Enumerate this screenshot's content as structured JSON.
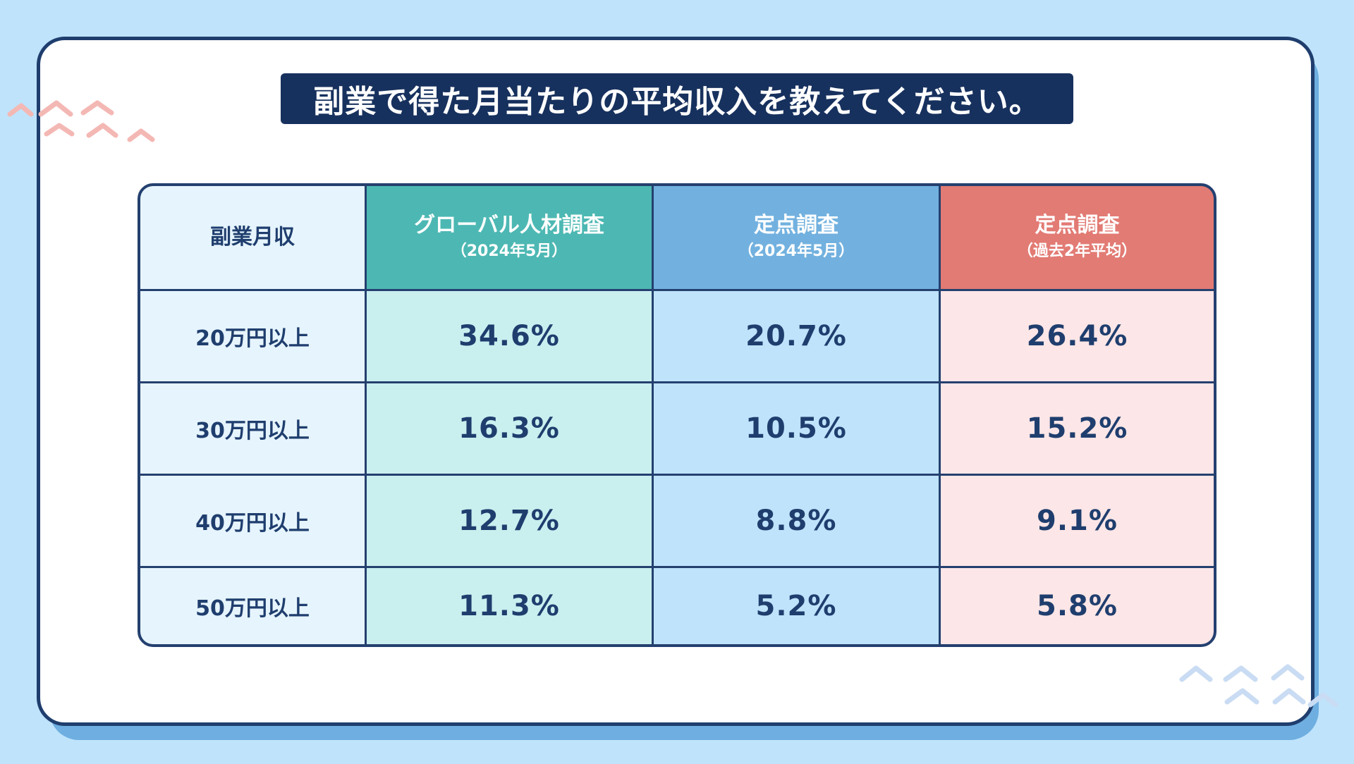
{
  "title": "副業で得た月当たりの平均収入を教えてください。",
  "table": {
    "corner_label": "副業月収",
    "columns": [
      {
        "main": "グローバル人材調査",
        "sub": "（2024年5月）",
        "color": "#4db8b3"
      },
      {
        "main": "定点調査",
        "sub": "（2024年5月）",
        "color": "#72b1df"
      },
      {
        "main": "定点調査",
        "sub": "（過去2年平均）",
        "color": "#e27b74"
      }
    ],
    "rows": [
      {
        "label": "20万円以上",
        "values": [
          "34.6%",
          "20.7%",
          "26.4%"
        ]
      },
      {
        "label": "30万円以上",
        "values": [
          "16.3%",
          "10.5%",
          "15.2%"
        ]
      },
      {
        "label": "40万円以上",
        "values": [
          "12.7%",
          "8.8%",
          "9.1%"
        ]
      },
      {
        "label": "50万円以上",
        "values": [
          "11.3%",
          "5.2%",
          "5.8%"
        ]
      }
    ]
  },
  "colors": {
    "background": "#bfe3fb",
    "title_bg": "#17315e",
    "border": "#1f3e6e",
    "deco_pink": "#f4b8b4",
    "deco_blue": "#c9dcf3"
  },
  "decorations": [
    "pink-wave-icon",
    "blue-wave-icon"
  ]
}
